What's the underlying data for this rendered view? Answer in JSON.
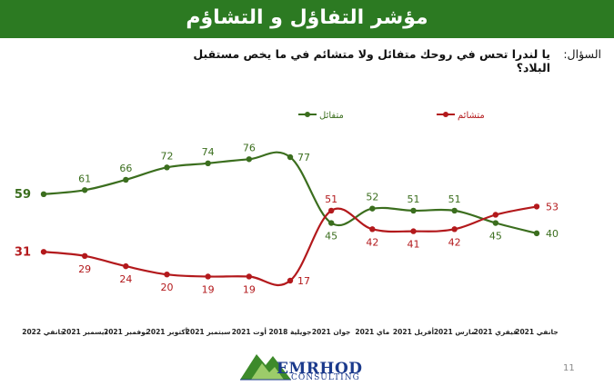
{
  "slide": {
    "title": "مؤشر التفاؤل و التشاؤم",
    "question_label": "السؤال:",
    "question_line1": "يا لندرا تحس في روحك متفائل ولا متشائم في ما يخص مستقبل",
    "question_line2": "البلاد؟",
    "logo_text": "EMRHOD",
    "logo_subtext": "CONSULTING",
    "page_number": "11"
  },
  "colors": {
    "title_bar": "#2c7a22",
    "optimist": "#3b6e1e",
    "pessimist": "#b3191c"
  },
  "chart_data": {
    "type": "line",
    "categories": [
      "جانفي 2022",
      "ديسمبر 2021",
      "نوفمبر 2021",
      "أكتوبر 2021",
      "سبتمبر 2021",
      "أوت 2021",
      "جويلية 2018",
      "جوان 2021",
      "ماي 2021",
      "أفريل 2021",
      "مارس 2021",
      "فيفري 2021",
      "جانفي 2021"
    ],
    "series": [
      {
        "name": "متفائل",
        "values": [
          59,
          61,
          66,
          72,
          74,
          76,
          77,
          45,
          52,
          51,
          51,
          45,
          40
        ]
      },
      {
        "name": "متشائم",
        "values": [
          31,
          29,
          24,
          20,
          19,
          19,
          17,
          51,
          42,
          41,
          42,
          49,
          53
        ]
      }
    ],
    "data_labels": {
      "متفائل": [
        "59",
        "61",
        "66",
        "72",
        "74",
        "76",
        "77",
        "45",
        "52",
        "51",
        "51",
        "45",
        "40"
      ],
      "متشائم": [
        "31",
        "29",
        "24",
        "20",
        "19",
        "19",
        "17",
        "51",
        "42",
        "41",
        "42",
        "",
        "53"
      ]
    },
    "legend_position": "top",
    "grid": false
  }
}
